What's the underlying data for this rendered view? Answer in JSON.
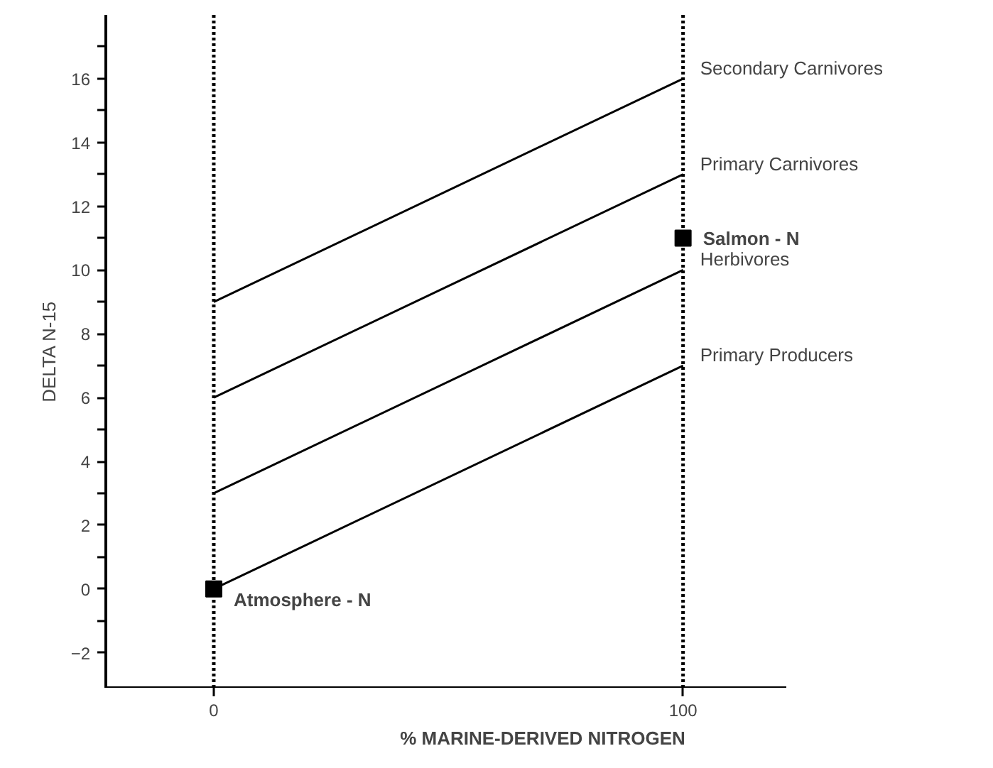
{
  "chart_data": {
    "type": "line",
    "xlabel": "% MARINE-DERIVED NITROGEN",
    "ylabel": "DELTA N-15",
    "x": [
      0,
      100
    ],
    "series": [
      {
        "name": "Secondary Carnivores",
        "color": "#000000",
        "values": [
          9,
          16
        ]
      },
      {
        "name": "Primary Carnivores",
        "color": "#000000",
        "values": [
          6,
          13
        ]
      },
      {
        "name": "Herbivores",
        "color": "#000000",
        "values": [
          3,
          10
        ]
      },
      {
        "name": "Primary Producers",
        "color": "#000000",
        "values": [
          0,
          7
        ]
      },
      {
        "type": "scatter",
        "marker": "square",
        "color": "#000000",
        "x": [
          0,
          100
        ],
        "values": [
          0,
          11
        ]
      }
    ],
    "annotations": [
      {
        "text": "Atmosphere - N",
        "x": 0,
        "y": 0
      },
      {
        "text": "Salmon - N",
        "x": 100,
        "y": 11
      }
    ],
    "ref_lines": [
      {
        "axis": "x",
        "value": 0,
        "line_style": "dotted",
        "color": "#000000"
      },
      {
        "axis": "x",
        "value": 100,
        "line_style": "dotted",
        "color": "#000000"
      }
    ],
    "xlim": [
      -23,
      122
    ],
    "xticks": [
      0,
      100
    ],
    "ylim": [
      -3.1,
      18
    ],
    "yticks": [
      -2,
      {
        "value": -1,
        "label": null
      },
      0,
      {
        "value": 1,
        "label": null
      },
      2,
      {
        "value": 3,
        "label": null
      },
      4,
      {
        "value": 5,
        "label": null
      },
      6,
      {
        "value": 7,
        "label": null
      },
      8,
      {
        "value": 9,
        "label": null
      },
      10,
      {
        "value": 11,
        "label": null
      },
      12,
      {
        "value": 13,
        "label": null
      },
      14,
      {
        "value": 15,
        "label": null
      },
      16,
      {
        "value": 17,
        "label": null
      }
    ],
    "grid": false,
    "marker": "none",
    "line_style": "solid"
  }
}
